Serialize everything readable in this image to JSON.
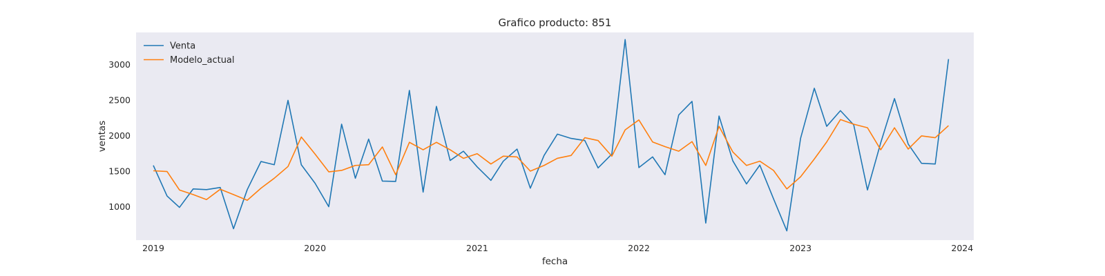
{
  "chart_data": {
    "type": "line",
    "title": "Grafico producto: 851",
    "xlabel": "fecha",
    "ylabel": "ventas",
    "x_ticks": [
      "2019",
      "2020",
      "2021",
      "2022",
      "2023",
      "2024"
    ],
    "y_ticks": [
      1000,
      1500,
      2000,
      2500,
      3000
    ],
    "ylim": [
      530,
      3450
    ],
    "xlim": [
      "2018-11-23",
      "2024-01-27"
    ],
    "grid": false,
    "legend_position": "upper-left",
    "x": [
      "2019-01",
      "2019-02",
      "2019-03",
      "2019-04",
      "2019-05",
      "2019-06",
      "2019-07",
      "2019-08",
      "2019-09",
      "2019-10",
      "2019-11",
      "2019-12",
      "2020-01",
      "2020-02",
      "2020-03",
      "2020-04",
      "2020-05",
      "2020-06",
      "2020-07",
      "2020-08",
      "2020-09",
      "2020-10",
      "2020-11",
      "2020-12",
      "2021-01",
      "2021-02",
      "2021-03",
      "2021-04",
      "2021-05",
      "2021-06",
      "2021-07",
      "2021-08",
      "2021-09",
      "2021-10",
      "2021-11",
      "2021-12",
      "2022-01",
      "2022-02",
      "2022-03",
      "2022-04",
      "2022-05",
      "2022-06",
      "2022-07",
      "2022-08",
      "2022-09",
      "2022-10",
      "2022-11",
      "2022-12",
      "2023-01",
      "2023-02",
      "2023-03",
      "2023-04",
      "2023-05",
      "2023-06",
      "2023-07",
      "2023-08",
      "2023-09",
      "2023-10",
      "2023-11",
      "2023-12"
    ],
    "series": [
      {
        "name": "Venta",
        "color": "#1f77b4",
        "values": [
          1580,
          1150,
          990,
          1250,
          1240,
          1270,
          690,
          1240,
          1635,
          1590,
          2495,
          1590,
          1330,
          1000,
          2160,
          1400,
          1950,
          1360,
          1355,
          2635,
          1205,
          2410,
          1650,
          1780,
          1560,
          1370,
          1640,
          1810,
          1260,
          1720,
          2020,
          1960,
          1930,
          1545,
          1740,
          3350,
          1550,
          1700,
          1450,
          2290,
          2480,
          770,
          2275,
          1645,
          1320,
          1585,
          1110,
          660,
          1960,
          2665,
          2130,
          2350,
          2150,
          1235,
          1900,
          2520,
          1880,
          1610,
          1600,
          3075
        ]
      },
      {
        "name": "Modelo_actual",
        "color": "#ff7f0e",
        "values": [
          1505,
          1495,
          1235,
          1170,
          1100,
          1245,
          1170,
          1090,
          1260,
          1400,
          1565,
          1980,
          1740,
          1490,
          1510,
          1580,
          1590,
          1840,
          1450,
          1905,
          1800,
          1905,
          1800,
          1680,
          1745,
          1600,
          1710,
          1700,
          1500,
          1580,
          1680,
          1720,
          1970,
          1930,
          1710,
          2080,
          2220,
          1910,
          1845,
          1780,
          1915,
          1580,
          2130,
          1770,
          1580,
          1640,
          1510,
          1250,
          1420,
          1670,
          1910,
          2225,
          2160,
          2110,
          1800,
          2110,
          1810,
          1995,
          1970,
          2140
        ]
      }
    ]
  }
}
